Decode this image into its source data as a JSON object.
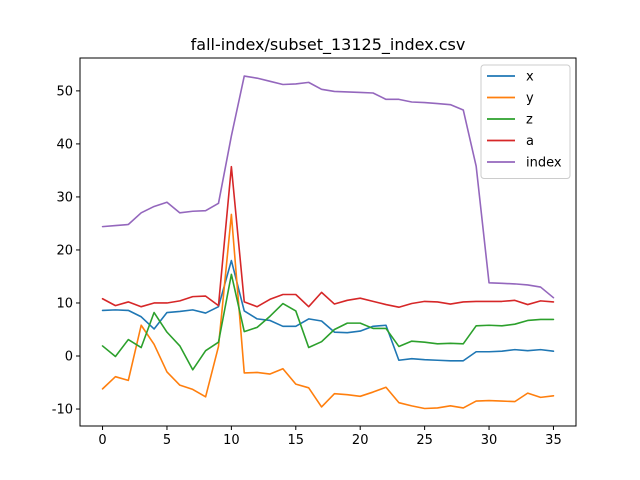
{
  "chart_data": {
    "type": "line",
    "title": "fall-index/subset_13125_index.csv",
    "xlabel": "",
    "ylabel": "",
    "xlim": [
      -1.75,
      36.75
    ],
    "ylim": [
      -13.2,
      56.2
    ],
    "x_ticks": [
      0,
      5,
      10,
      15,
      20,
      25,
      30,
      35
    ],
    "y_ticks": [
      -10,
      0,
      10,
      20,
      30,
      40,
      50
    ],
    "grid": false,
    "legend_position": "top-right",
    "x": [
      0,
      1,
      2,
      3,
      4,
      5,
      6,
      7,
      8,
      9,
      10,
      11,
      12,
      13,
      14,
      15,
      16,
      17,
      18,
      19,
      20,
      21,
      22,
      23,
      24,
      25,
      26,
      27,
      28,
      29,
      30,
      31,
      32,
      33,
      34,
      35
    ],
    "series": [
      {
        "name": "x",
        "color": "#1f77b4",
        "values": [
          8.6,
          8.7,
          8.6,
          7.4,
          5.1,
          8.2,
          8.4,
          8.7,
          8.1,
          9.3,
          18.0,
          8.5,
          7.0,
          6.7,
          5.6,
          5.6,
          7.0,
          6.6,
          4.5,
          4.4,
          4.7,
          5.6,
          5.8,
          -0.8,
          -0.5,
          -0.7,
          -0.8,
          -0.9,
          -0.9,
          0.8,
          0.8,
          0.9,
          1.2,
          1.0,
          1.2,
          0.9
        ]
      },
      {
        "name": "y",
        "color": "#ff7f0e",
        "values": [
          -6.2,
          -3.9,
          -4.6,
          5.8,
          2.2,
          -3.0,
          -5.5,
          -6.3,
          -7.7,
          1.8,
          26.7,
          -3.2,
          -3.1,
          -3.4,
          -2.4,
          -5.3,
          -6.0,
          -9.6,
          -7.1,
          -7.3,
          -7.6,
          -6.8,
          -5.9,
          -8.8,
          -9.4,
          -9.9,
          -9.8,
          -9.4,
          -9.8,
          -8.5,
          -8.4,
          -8.5,
          -8.6,
          -7.0,
          -7.8,
          -7.5
        ]
      },
      {
        "name": "z",
        "color": "#2ca02c",
        "values": [
          1.9,
          -0.1,
          3.1,
          1.6,
          8.2,
          4.5,
          1.9,
          -2.6,
          1.0,
          2.6,
          15.4,
          4.6,
          5.4,
          7.5,
          9.9,
          8.5,
          1.6,
          2.7,
          5.0,
          6.2,
          6.2,
          5.2,
          5.2,
          1.8,
          2.8,
          2.6,
          2.3,
          2.4,
          2.3,
          5.7,
          5.8,
          5.7,
          6.0,
          6.7,
          6.9,
          6.9
        ]
      },
      {
        "name": "a",
        "color": "#d62728",
        "values": [
          10.8,
          9.5,
          10.2,
          9.3,
          10.0,
          10.0,
          10.4,
          11.2,
          11.3,
          9.5,
          35.7,
          10.2,
          9.3,
          10.7,
          11.6,
          11.6,
          9.3,
          12.0,
          9.8,
          10.5,
          10.9,
          10.3,
          9.7,
          9.2,
          9.9,
          10.3,
          10.2,
          9.8,
          10.2,
          10.3,
          10.3,
          10.3,
          10.5,
          9.7,
          10.4,
          10.2
        ]
      },
      {
        "name": "index",
        "color": "#9467bd",
        "values": [
          24.4,
          24.6,
          24.8,
          27.0,
          28.2,
          29.0,
          27.0,
          27.3,
          27.4,
          28.8,
          41.5,
          52.8,
          52.4,
          51.8,
          51.2,
          51.3,
          51.6,
          50.3,
          49.9,
          49.8,
          49.7,
          49.6,
          48.4,
          48.4,
          47.9,
          47.8,
          47.6,
          47.4,
          46.4,
          35.8,
          13.8,
          13.7,
          13.6,
          13.4,
          13.0,
          11.0
        ]
      }
    ]
  }
}
